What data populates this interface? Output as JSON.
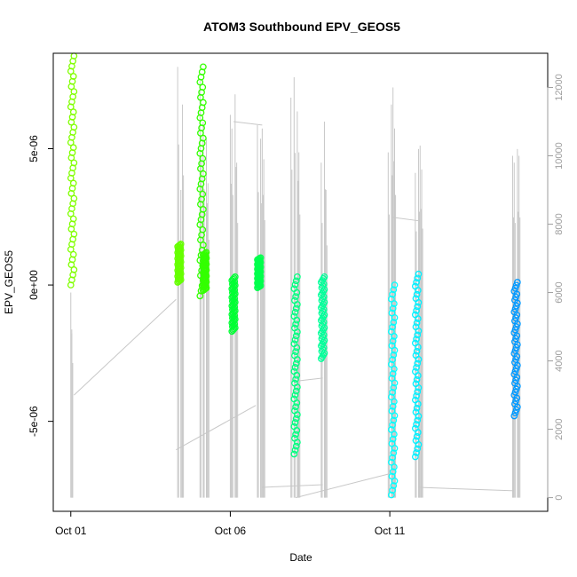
{
  "chart_data": {
    "type": "scatter",
    "title": "ATOM3 Southbound EPV_GEOS5",
    "xlabel": "Date",
    "ylabel": "EPV_GEOS5",
    "x_axis_type": "date",
    "x_ticks": [
      "Oct 01",
      "Oct 06",
      "Oct 11"
    ],
    "x_tick_days": [
      1,
      6,
      11
    ],
    "xlim_days": [
      0.45,
      15.95
    ],
    "y_ticks": [
      "5e-06",
      "0e+00",
      "-5e-06"
    ],
    "y_tick_values": [
      5e-06,
      0.0,
      -5e-06
    ],
    "ylim": [
      -8.3e-06,
      8.5e-06
    ],
    "y2_ticks": [
      "0",
      "2000",
      "4000",
      "6000",
      "8000",
      "10000",
      "12000"
    ],
    "y2_tick_values": [
      0,
      2000,
      4000,
      6000,
      8000,
      10000,
      12000
    ],
    "y2lim": [
      -400,
      13000
    ],
    "y2_color": "#9e9e9e",
    "grid": false,
    "series": [
      {
        "day": 1.05,
        "ymin": 0.0,
        "ymax": 8.4e-06,
        "color": "#80ff00"
      },
      {
        "day": 4.4,
        "ymin": 1e-07,
        "ymax": 1.5e-06,
        "color": "#66ff00"
      },
      {
        "day": 5.1,
        "ymin": -4e-07,
        "ymax": 8e-06,
        "color": "#33ff00"
      },
      {
        "day": 5.2,
        "ymin": -2e-07,
        "ymax": 1.2e-06,
        "color": "#33ff00"
      },
      {
        "day": 6.1,
        "ymin": -1.7e-06,
        "ymax": 3e-07,
        "color": "#00ff33"
      },
      {
        "day": 6.9,
        "ymin": -1e-07,
        "ymax": 1e-06,
        "color": "#00ff4d"
      },
      {
        "day": 8.05,
        "ymin": -6.2e-06,
        "ymax": 3e-07,
        "color": "#00ff80"
      },
      {
        "day": 8.9,
        "ymin": -2.7e-06,
        "ymax": 3e-07,
        "color": "#00ff99"
      },
      {
        "day": 11.1,
        "ymin": -7.7e-06,
        "ymax": 0.0,
        "color": "#00ffff"
      },
      {
        "day": 11.85,
        "ymin": -6.3e-06,
        "ymax": 4e-07,
        "color": "#00f0ff"
      },
      {
        "day": 14.95,
        "ymin": -4.8e-06,
        "ymax": 1e-07,
        "color": "#0099ff"
      }
    ],
    "altitude_line": {
      "color": "#c8c8c8",
      "spike_days": [
        1.0,
        1.03,
        4.35,
        4.45,
        4.5,
        5.05,
        5.15,
        5.25,
        5.3,
        6.0,
        6.05,
        6.15,
        6.2,
        6.85,
        6.95,
        7.0,
        7.05,
        7.9,
        8.0,
        8.1,
        8.15,
        8.85,
        8.95,
        9.0,
        10.95,
        11.05,
        11.1,
        11.15,
        11.8,
        11.9,
        11.95,
        12.0,
        14.85,
        14.9,
        15.0,
        15.05
      ],
      "spike_tops": [
        6000,
        4800,
        12600,
        9000,
        11500,
        12200,
        11000,
        10500,
        9200,
        11200,
        10800,
        11800,
        9800,
        10900,
        10500,
        10800,
        9900,
        11700,
        12300,
        11300,
        10100,
        9800,
        11000,
        9000,
        10100,
        11500,
        12000,
        10800,
        9500,
        10200,
        10300,
        9600,
        10000,
        9800,
        10200,
        10000
      ],
      "transits": [
        {
          "from_day": 1.1,
          "to_day": 4.3,
          "from_alt": 3000,
          "to_alt": 5800
        },
        {
          "from_day": 4.3,
          "to_day": 6.8,
          "from_alt": 1400,
          "to_alt": 2700
        },
        {
          "from_day": 6.1,
          "to_day": 7.0,
          "from_alt": 11000,
          "to_alt": 10900
        },
        {
          "from_day": 7.0,
          "to_day": 8.9,
          "from_alt": 300,
          "to_alt": 380
        },
        {
          "from_day": 8.0,
          "to_day": 8.9,
          "from_alt": 3400,
          "to_alt": 3500
        },
        {
          "from_day": 8.05,
          "to_day": 11.0,
          "from_alt": 0,
          "to_alt": 700
        },
        {
          "from_day": 11.1,
          "to_day": 11.9,
          "from_alt": 8200,
          "to_alt": 8100
        },
        {
          "from_day": 11.9,
          "to_day": 14.9,
          "from_alt": 300,
          "to_alt": 200
        }
      ]
    }
  }
}
